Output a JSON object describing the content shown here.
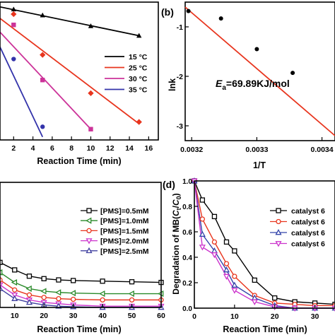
{
  "chart_data": [
    {
      "panel": "a",
      "type": "scatter",
      "xlabel": "Reaction Time (min)",
      "ylabel": "",
      "xlim": [
        0,
        17
      ],
      "ylim": [
        -2.2,
        0.1
      ],
      "xticks": [
        "2",
        "4",
        "6",
        "8",
        "10",
        "12",
        "14",
        "16"
      ],
      "legend_position": "right",
      "series": [
        {
          "name": "15 °C",
          "color": "#000000",
          "marker": "triangle",
          "x": [
            2,
            5,
            10,
            15
          ],
          "y": [
            -0.02,
            -0.12,
            -0.3,
            -0.46
          ]
        },
        {
          "name": "25 °C",
          "color": "#e8351e",
          "marker": "diamond",
          "x": [
            2,
            5,
            10,
            15
          ],
          "y": [
            -0.1,
            -0.78,
            -1.42,
            -1.9
          ]
        },
        {
          "name": "30 °C",
          "color": "#cc3399",
          "marker": "square",
          "x": [
            2,
            5,
            10
          ],
          "y": [
            -0.28,
            -1.2,
            -2.02
          ]
        },
        {
          "name": "35 °C",
          "color": "#3333aa",
          "marker": "circle",
          "x": [
            2,
            5
          ],
          "y": [
            -0.85,
            -1.98
          ]
        }
      ],
      "fit_lines": [
        {
          "color": "#000000",
          "x": [
            0,
            15
          ],
          "y": [
            0.04,
            -0.46
          ]
        },
        {
          "color": "#e8351e",
          "x": [
            0,
            15
          ],
          "y": [
            -0.1,
            -1.93
          ]
        },
        {
          "color": "#cc3399",
          "x": [
            0,
            10
          ],
          "y": [
            -0.3,
            -2.02
          ]
        },
        {
          "color": "#3333aa",
          "x": [
            0,
            5
          ],
          "y": [
            -0.45,
            -2.15
          ]
        }
      ]
    },
    {
      "panel": "b",
      "label": "(b)",
      "type": "scatter",
      "xlabel": "1/T",
      "ylabel": "lnk",
      "xlim": [
        0.00319,
        0.00342
      ],
      "ylim": [
        -3.3,
        -0.5
      ],
      "xticks": [
        "0.0032",
        "0.0033",
        "0.0034"
      ],
      "yticks": [
        "-1",
        "-2",
        "-3"
      ],
      "annotation": "=69.89KJ/mol",
      "annotation_symbol": "E",
      "annotation_subscript": "a",
      "points": {
        "color": "#000000",
        "x": [
          0.003195,
          0.003245,
          0.0033,
          0.003355
        ],
        "y": [
          -0.68,
          -0.83,
          -1.45,
          -1.93
        ]
      },
      "fit_line": {
        "color": "#e8351e",
        "x": [
          0.00319,
          0.00342
        ],
        "y": [
          -0.6,
          -3.2
        ]
      }
    },
    {
      "panel": "c",
      "type": "line",
      "xlabel": "Reaction Time (min)",
      "ylabel": "",
      "xlim": [
        5,
        60
      ],
      "ylim": [
        0,
        1.0
      ],
      "xticks": [
        "10",
        "20",
        "30",
        "40",
        "50",
        "60"
      ],
      "legend_position": "right",
      "x": [
        5,
        10,
        15,
        20,
        25,
        30,
        40,
        50,
        60
      ],
      "series": [
        {
          "name": "[PMS]=0.5mM",
          "color": "#000000",
          "marker": "square",
          "values": [
            0.36,
            0.3,
            0.25,
            0.23,
            0.22,
            0.215,
            0.21,
            0.205,
            0.2
          ]
        },
        {
          "name": "[PMS]=1.0mM",
          "color": "#2a8a2a",
          "marker": "triangle-left",
          "values": [
            0.28,
            0.2,
            0.15,
            0.13,
            0.12,
            0.115,
            0.11,
            0.11,
            0.11
          ]
        },
        {
          "name": "[PMS]=1.5mM",
          "color": "#e8351e",
          "marker": "circle",
          "values": [
            0.22,
            0.14,
            0.1,
            0.08,
            0.07,
            0.065,
            0.06,
            0.06,
            0.06
          ]
        },
        {
          "name": "[PMS]=2.0mM",
          "color": "#cc33cc",
          "marker": "triangle-down",
          "values": [
            0.18,
            0.1,
            0.06,
            0.04,
            0.03,
            0.02,
            0.01,
            0.01,
            0.01
          ]
        },
        {
          "name": "[PMS]=2.5mM",
          "color": "#4040a0",
          "marker": "triangle",
          "values": [
            0.15,
            0.07,
            0.04,
            0.02,
            0.01,
            0.005,
            0.0,
            0.0,
            0.0
          ]
        }
      ]
    },
    {
      "panel": "d",
      "label": "(d)",
      "type": "line",
      "xlabel": "Reaction Time (min)",
      "ylabel_parts": [
        "Degradation of MB(",
        "C",
        "t",
        "/",
        "C",
        "0",
        ")"
      ],
      "xlim": [
        0,
        35
      ],
      "ylim": [
        0,
        1.0
      ],
      "xticks": [
        "0",
        "10",
        "20",
        "30"
      ],
      "yticks": [
        "0.0",
        "0.2",
        "0.4",
        "0.6",
        "0.8",
        "1.0"
      ],
      "legend_position": "right",
      "x": [
        0,
        2,
        5,
        8,
        10,
        15,
        20,
        25,
        30,
        35
      ],
      "series": [
        {
          "name": "catalyst 6",
          "color": "#000000",
          "marker": "square",
          "values": [
            1.0,
            0.85,
            0.72,
            0.52,
            0.45,
            0.22,
            0.08,
            0.05,
            0.04,
            0.03
          ]
        },
        {
          "name": "catalyst 6",
          "color": "#e8351e",
          "marker": "circle",
          "values": [
            1.0,
            0.7,
            0.52,
            0.35,
            0.25,
            0.1,
            0.04,
            0.03,
            0.02,
            0.02
          ]
        },
        {
          "name": "catalyst 6",
          "color": "#3344aa",
          "marker": "triangle",
          "values": [
            1.0,
            0.58,
            0.45,
            0.3,
            0.18,
            0.08,
            0.02,
            0.0,
            0.0,
            0.0
          ]
        },
        {
          "name": "catalyst 6",
          "color": "#cc33cc",
          "marker": "triangle-down",
          "values": [
            1.0,
            0.48,
            0.42,
            0.25,
            0.14,
            0.05,
            0.01,
            0.0,
            0.0,
            0.0
          ]
        }
      ]
    }
  ]
}
